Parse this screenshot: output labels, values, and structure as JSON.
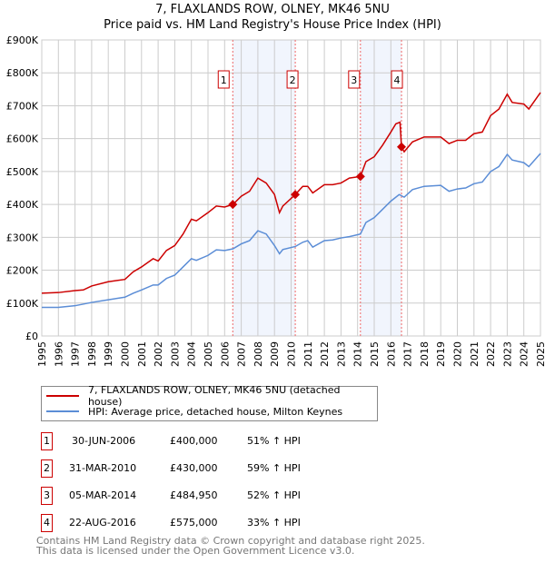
{
  "title": "7, FLAXLANDS ROW, OLNEY, MK46 5NU",
  "subtitle": "Price paid vs. HM Land Registry's House Price Index (HPI)",
  "chart_data": {
    "type": "line",
    "title": "7, FLAXLANDS ROW, OLNEY, MK46 5NU",
    "subtitle": "Price paid vs. HM Land Registry's House Price Index (HPI)",
    "xlim": [
      1995,
      2025
    ],
    "ylim": [
      0,
      900000
    ],
    "x_ticks": [
      "1995",
      "1996",
      "1997",
      "1998",
      "1999",
      "2000",
      "2001",
      "2002",
      "2003",
      "2004",
      "2005",
      "2006",
      "2007",
      "2008",
      "2009",
      "2010",
      "2011",
      "2012",
      "2013",
      "2014",
      "2015",
      "2016",
      "2017",
      "2018",
      "2019",
      "2020",
      "2021",
      "2022",
      "2023",
      "2024",
      "2025"
    ],
    "y_ticks": [
      {
        "v": 0,
        "label": "£0"
      },
      {
        "v": 100000,
        "label": "£100K"
      },
      {
        "v": 200000,
        "label": "£200K"
      },
      {
        "v": 300000,
        "label": "£300K"
      },
      {
        "v": 400000,
        "label": "£400K"
      },
      {
        "v": 500000,
        "label": "£500K"
      },
      {
        "v": 600000,
        "label": "£600K"
      },
      {
        "v": 700000,
        "label": "£700K"
      },
      {
        "v": 800000,
        "label": "£800K"
      },
      {
        "v": 900000,
        "label": "£900K"
      }
    ],
    "grid": true,
    "series": [
      {
        "name": "7, FLAXLANDS ROW, OLNEY, MK46 5NU (detached house)",
        "color": "#cc0000",
        "x": [
          1995,
          1996,
          1997,
          1997.5,
          1998,
          1999,
          2000,
          2000.5,
          2001,
          2001.7,
          2002,
          2002.5,
          2003,
          2003.5,
          2004,
          2004.3,
          2005,
          2005.5,
          2006,
          2006.5,
          2007,
          2007.5,
          2008,
          2008.5,
          2009,
          2009.3,
          2009.5,
          2010.25,
          2010.7,
          2011,
          2011.3,
          2012,
          2012.5,
          2013,
          2013.5,
          2014.17,
          2014.5,
          2015,
          2015.5,
          2016,
          2016.3,
          2016.55,
          2016.64,
          2016.8,
          2017.3,
          2018,
          2019,
          2019.5,
          2020,
          2020.5,
          2021,
          2021.5,
          2022,
          2022.5,
          2023,
          2023.3,
          2024,
          2024.3,
          2025
        ],
        "y": [
          130000,
          132000,
          138000,
          140000,
          152000,
          165000,
          172000,
          195000,
          210000,
          235000,
          228000,
          260000,
          275000,
          310000,
          355000,
          350000,
          375000,
          395000,
          392000,
          400000,
          425000,
          440000,
          480000,
          465000,
          430000,
          375000,
          395000,
          430000,
          455000,
          455000,
          435000,
          460000,
          460000,
          465000,
          480000,
          484950,
          530000,
          545000,
          580000,
          620000,
          645000,
          650000,
          575000,
          560000,
          590000,
          605000,
          605000,
          585000,
          595000,
          595000,
          615000,
          620000,
          670000,
          690000,
          735000,
          710000,
          705000,
          690000,
          740000
        ]
      },
      {
        "name": "HPI: Average price, detached house, Milton Keynes",
        "color": "#5b8dd6",
        "x": [
          1995,
          1996,
          1997,
          1998,
          1999,
          2000,
          2000.5,
          2001,
          2001.7,
          2002,
          2002.5,
          2003,
          2003.5,
          2004,
          2004.3,
          2005,
          2005.5,
          2006,
          2006.5,
          2007,
          2007.5,
          2008,
          2008.5,
          2009,
          2009.3,
          2009.5,
          2010.25,
          2010.7,
          2011,
          2011.3,
          2012,
          2012.5,
          2013,
          2013.5,
          2014.17,
          2014.5,
          2015,
          2015.5,
          2016,
          2016.5,
          2016.8,
          2017.3,
          2018,
          2019,
          2019.5,
          2020,
          2020.5,
          2021,
          2021.5,
          2022,
          2022.5,
          2023,
          2023.3,
          2024,
          2024.3,
          2025
        ],
        "y": [
          87000,
          87000,
          92000,
          102000,
          110000,
          118000,
          130000,
          140000,
          155000,
          155000,
          175000,
          185000,
          210000,
          235000,
          230000,
          245000,
          262000,
          260000,
          265000,
          280000,
          290000,
          320000,
          310000,
          275000,
          250000,
          263000,
          272000,
          285000,
          290000,
          270000,
          290000,
          292000,
          298000,
          302000,
          310000,
          345000,
          360000,
          385000,
          410000,
          430000,
          422000,
          445000,
          455000,
          458000,
          440000,
          447000,
          450000,
          463000,
          468000,
          500000,
          515000,
          552000,
          535000,
          527000,
          515000,
          555000
        ]
      }
    ],
    "transactions": [
      {
        "id": "1",
        "x": 2006.49,
        "date": "30-JUN-2006",
        "price": 400000,
        "price_label": "£400,000",
        "hpi": "51% ↑ HPI"
      },
      {
        "id": "2",
        "x": 2010.25,
        "date": "31-MAR-2010",
        "price": 430000,
        "price_label": "£430,000",
        "hpi": "59% ↑ HPI"
      },
      {
        "id": "3",
        "x": 2014.17,
        "date": "05-MAR-2014",
        "price": 484950,
        "price_label": "£484,950",
        "hpi": "52% ↑ HPI"
      },
      {
        "id": "4",
        "x": 2016.64,
        "date": "22-AUG-2016",
        "price": 575000,
        "price_label": "£575,000",
        "hpi": "33% ↑ HPI"
      }
    ],
    "shaded_ranges": [
      [
        2006.49,
        2010.25
      ],
      [
        2014.17,
        2016.64
      ]
    ],
    "legend_placement": "below"
  },
  "footer": [
    "Contains HM Land Registry data © Crown copyright and database right 2025.",
    "This data is licensed under the Open Government Licence v3.0."
  ]
}
